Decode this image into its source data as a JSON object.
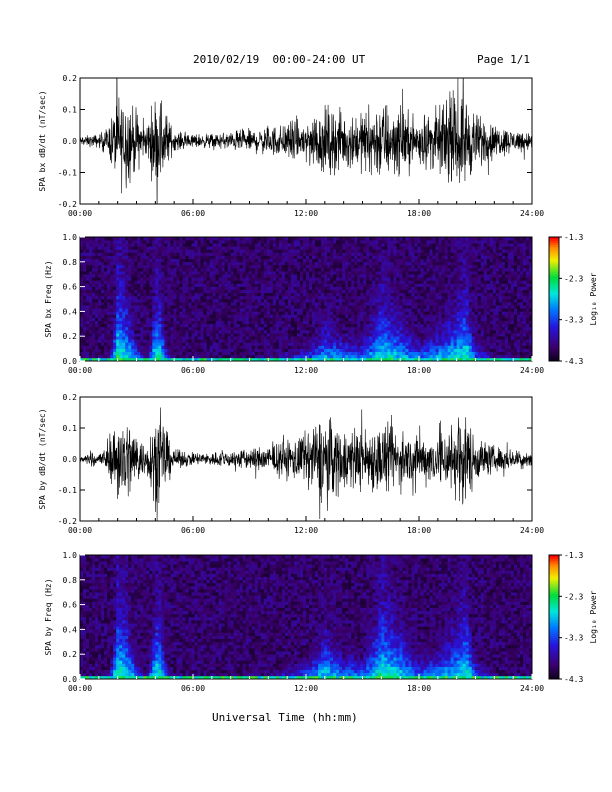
{
  "header": {
    "title": "2010/02/19  00:00-24:00 UT",
    "page": "Page 1/1"
  },
  "xaxis": {
    "label": "Universal Time (hh:mm)",
    "ticks": [
      "00:00",
      "06:00",
      "12:00",
      "18:00",
      "24:00"
    ]
  },
  "colorbar": {
    "label": "Log₁₀ Power",
    "ticks": [
      "-1.3",
      "-2.3",
      "-3.3",
      "-4.3"
    ],
    "range": [
      -4.3,
      -1.3
    ]
  },
  "colors": {
    "background": "#ffffff",
    "trace": "#000000",
    "spec_background": "#1a0a33"
  },
  "chart_data": [
    {
      "type": "line",
      "ylabel": "SPA bx dB/dt (nT/sec)",
      "yticks": [
        "0.2",
        "0.1",
        "0.0",
        "-0.1",
        "-0.2"
      ],
      "ylim": [
        -0.2,
        0.2
      ],
      "x_hours_range": [
        0,
        24
      ],
      "envelope": {
        "hours": [
          0,
          1,
          1.5,
          2,
          2.5,
          3,
          3.5,
          4,
          4.3,
          4.7,
          5,
          6,
          7,
          8,
          9,
          10,
          11,
          12,
          13,
          14,
          15,
          16,
          17,
          18,
          19,
          20,
          20.5,
          21,
          22,
          23,
          24
        ],
        "amplitude": [
          0.02,
          0.03,
          0.06,
          0.2,
          0.2,
          0.12,
          0.06,
          0.2,
          0.2,
          0.1,
          0.04,
          0.03,
          0.03,
          0.04,
          0.05,
          0.06,
          0.08,
          0.1,
          0.15,
          0.12,
          0.12,
          0.18,
          0.14,
          0.1,
          0.14,
          0.18,
          0.2,
          0.12,
          0.07,
          0.05,
          0.04
        ]
      }
    },
    {
      "type": "heatmap",
      "ylabel": "SPA bx Freq (Hz)",
      "yticks": [
        "1.0",
        "0.8",
        "0.6",
        "0.4",
        "0.2",
        "0.0"
      ],
      "ylim": [
        0.0,
        1.0
      ],
      "x_hours_range": [
        0,
        24
      ],
      "colorbar_range": [
        -4.3,
        -1.3
      ],
      "power_envelope": {
        "hours": [
          0,
          1,
          1.5,
          2,
          2.5,
          3,
          3.5,
          4,
          4.3,
          4.7,
          5,
          6,
          7,
          8,
          9,
          10,
          11,
          12,
          13,
          14,
          15,
          16,
          17,
          18,
          19,
          20,
          20.5,
          21,
          22,
          23,
          24
        ],
        "log_power": [
          -3.9,
          -3.7,
          -3.4,
          -2.2,
          -2.4,
          -2.9,
          -3.4,
          -2.3,
          -2.4,
          -3.2,
          -3.6,
          -3.7,
          -3.7,
          -3.6,
          -3.5,
          -3.4,
          -3.2,
          -3.1,
          -2.6,
          -2.8,
          -2.9,
          -2.4,
          -2.6,
          -2.9,
          -2.7,
          -2.5,
          -2.3,
          -2.9,
          -3.4,
          -3.6,
          -3.7
        ],
        "extent_hz": [
          0.05,
          0.08,
          0.15,
          0.5,
          0.45,
          0.3,
          0.12,
          0.45,
          0.45,
          0.2,
          0.1,
          0.08,
          0.08,
          0.1,
          0.12,
          0.15,
          0.2,
          0.25,
          0.35,
          0.3,
          0.3,
          0.5,
          0.4,
          0.3,
          0.35,
          0.45,
          0.5,
          0.3,
          0.15,
          0.1,
          0.08
        ]
      }
    },
    {
      "type": "line",
      "ylabel": "SPA by dB/dt (nT/sec)",
      "yticks": [
        "0.2",
        "0.1",
        "0.0",
        "-0.1",
        "-0.2"
      ],
      "ylim": [
        -0.2,
        0.2
      ],
      "x_hours_range": [
        0,
        24
      ],
      "envelope": {
        "hours": [
          0,
          1,
          1.5,
          2,
          2.5,
          3,
          3.5,
          4,
          4.3,
          4.7,
          5,
          6,
          7,
          8,
          9,
          10,
          11,
          12,
          13,
          14,
          15,
          16,
          17,
          18,
          19,
          20,
          20.5,
          21,
          22,
          23,
          24
        ],
        "amplitude": [
          0.02,
          0.03,
          0.06,
          0.2,
          0.2,
          0.12,
          0.06,
          0.2,
          0.2,
          0.1,
          0.04,
          0.03,
          0.03,
          0.04,
          0.05,
          0.06,
          0.08,
          0.12,
          0.2,
          0.14,
          0.13,
          0.16,
          0.12,
          0.1,
          0.12,
          0.18,
          0.2,
          0.1,
          0.06,
          0.04,
          0.04
        ]
      }
    },
    {
      "type": "heatmap",
      "ylabel": "SPA by Freq (Hz)",
      "yticks": [
        "1.0",
        "0.8",
        "0.6",
        "0.4",
        "0.2",
        "0.0"
      ],
      "ylim": [
        0.0,
        1.0
      ],
      "x_hours_range": [
        0,
        24
      ],
      "colorbar_range": [
        -4.3,
        -1.3
      ],
      "power_envelope": {
        "hours": [
          0,
          1,
          1.5,
          2,
          2.5,
          3,
          3.5,
          4,
          4.3,
          4.7,
          5,
          6,
          7,
          8,
          9,
          10,
          11,
          12,
          13,
          14,
          15,
          16,
          17,
          18,
          19,
          20,
          20.5,
          21,
          22,
          23,
          24
        ],
        "log_power": [
          -3.9,
          -3.7,
          -3.4,
          -2.2,
          -2.4,
          -2.9,
          -3.4,
          -2.3,
          -2.4,
          -3.2,
          -3.6,
          -3.7,
          -3.7,
          -3.6,
          -3.5,
          -3.4,
          -3.2,
          -3.0,
          -2.5,
          -2.8,
          -2.9,
          -2.3,
          -2.5,
          -2.9,
          -2.8,
          -2.5,
          -2.3,
          -2.9,
          -3.4,
          -3.6,
          -3.7
        ],
        "extent_hz": [
          0.05,
          0.08,
          0.15,
          0.5,
          0.45,
          0.3,
          0.12,
          0.45,
          0.45,
          0.2,
          0.1,
          0.08,
          0.08,
          0.1,
          0.12,
          0.15,
          0.22,
          0.28,
          0.4,
          0.3,
          0.3,
          0.55,
          0.45,
          0.3,
          0.35,
          0.45,
          0.5,
          0.3,
          0.15,
          0.1,
          0.08
        ]
      }
    }
  ]
}
